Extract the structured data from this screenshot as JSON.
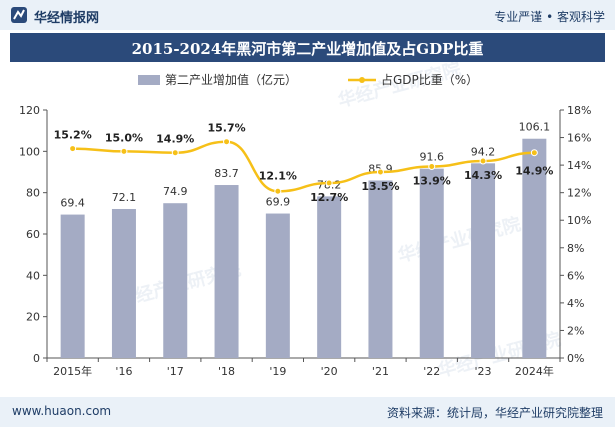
{
  "header": {
    "brand": "华经情报网",
    "slogan": "专业严谨 • 客观科学"
  },
  "footer": {
    "url": "www.huaon.com",
    "source": "资料来源：统计局，华经产业研究院整理"
  },
  "watermark": "华经产业研究院",
  "colors": {
    "bar": "#a4abc4",
    "line": "#f6c018",
    "title_bg": "#2b4a7a",
    "header_bg": "#eaf1f8"
  },
  "chart_data": {
    "type": "bar+line",
    "title": "2015-2024年黑河市第二产业增加值及占GDP比重",
    "categories": [
      "2015年",
      "'16",
      "'17",
      "'18",
      "'19",
      "'20",
      "'21",
      "'22",
      "'23",
      "2024年"
    ],
    "series": [
      {
        "name": "第二产业增加值（亿元）",
        "type": "bar",
        "axis": "left",
        "values": [
          69.4,
          72.1,
          74.9,
          83.7,
          69.9,
          78.2,
          85.9,
          91.6,
          94.2,
          106.1
        ],
        "labels": [
          "69.4",
          "72.1",
          "74.9",
          "83.7",
          "69.9",
          "78.2",
          "85.9",
          "91.6",
          "94.2",
          "106.1"
        ]
      },
      {
        "name": "占GDP比重（%）",
        "type": "line",
        "axis": "right",
        "values": [
          15.2,
          15.0,
          14.9,
          15.7,
          12.1,
          12.7,
          13.5,
          13.9,
          14.3,
          14.9
        ],
        "labels": [
          "15.2%",
          "15.0%",
          "14.9%",
          "15.7%",
          "12.1%",
          "12.7%",
          "13.5%",
          "13.9%",
          "14.3%",
          "14.9%"
        ]
      }
    ],
    "yleft": {
      "min": 0,
      "max": 120,
      "ticks": [
        "0",
        "20",
        "40",
        "60",
        "80",
        "100",
        "120"
      ]
    },
    "yright": {
      "min": 0,
      "max": 18,
      "ticks": [
        "0%",
        "2%",
        "4%",
        "6%",
        "8%",
        "10%",
        "12%",
        "14%",
        "16%",
        "18%"
      ]
    },
    "legend_position": "top-center",
    "grid": false
  }
}
